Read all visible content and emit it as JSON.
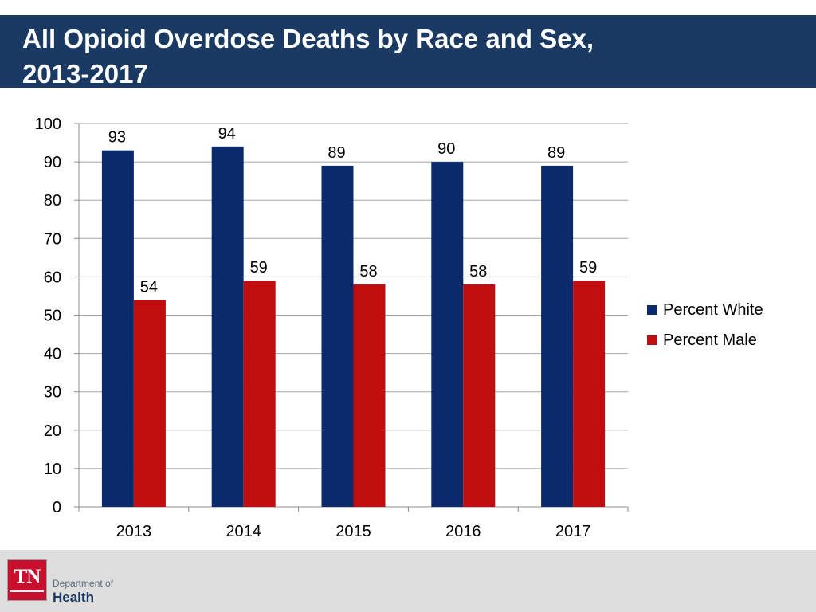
{
  "header": {
    "title_line1": "All Opioid Overdose Deaths by Race and Sex,",
    "title_line2": "2013-2017"
  },
  "footer": {
    "logo_text": "TN",
    "dept_line1": "Department of",
    "dept_line2": "Health"
  },
  "colors": {
    "header_bg": "#1b3a63",
    "series_white": "#0a2a6b",
    "series_male": "#c00d0d",
    "footer_bg": "#dedede"
  },
  "chart_data": {
    "type": "bar",
    "title": "All Opioid Overdose Deaths by Race and Sex, 2013-2017",
    "xlabel": "",
    "ylabel": "",
    "categories": [
      "2013",
      "2014",
      "2015",
      "2016",
      "2017"
    ],
    "series": [
      {
        "name": "Percent White",
        "values": [
          93,
          94,
          89,
          90,
          89
        ],
        "color": "#0a2a6b"
      },
      {
        "name": "Percent Male",
        "values": [
          54,
          59,
          58,
          58,
          59
        ],
        "color": "#c00d0d"
      }
    ],
    "ylim": [
      0,
      100
    ],
    "yticks": [
      0,
      10,
      20,
      30,
      40,
      50,
      60,
      70,
      80,
      90,
      100
    ],
    "grid": true,
    "legend": "right"
  }
}
